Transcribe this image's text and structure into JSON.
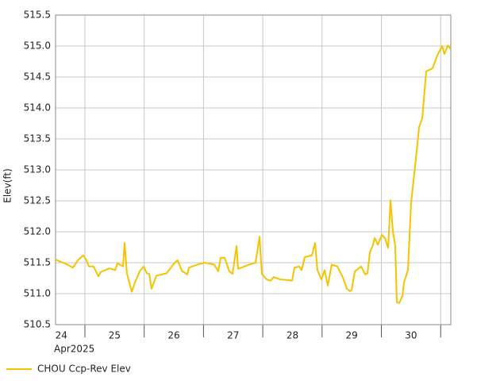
{
  "chart_data": {
    "type": "line",
    "y_label": "Elev(ft)",
    "x_sublabel": "Apr2025",
    "xlim": [
      24.505,
      31.171
    ],
    "ylim": [
      510.5,
      515.5
    ],
    "xticks": [
      {
        "value": 24.5,
        "label": "24"
      },
      {
        "value": 25.5,
        "label": "25"
      },
      {
        "value": 26.5,
        "label": "26"
      },
      {
        "value": 27.5,
        "label": "27"
      },
      {
        "value": 28.5,
        "label": "28"
      },
      {
        "value": 29.5,
        "label": "29"
      },
      {
        "value": 30.5,
        "label": "30"
      }
    ],
    "xgrid": [
      25,
      26,
      27,
      28,
      29,
      30,
      31
    ],
    "yticks": [
      510.5,
      {
        "value": 511,
        "label": "511.0"
      },
      511.5,
      {
        "value": 512,
        "label": "512.0"
      },
      512.5,
      {
        "value": 513,
        "label": "513.0"
      },
      513.5,
      {
        "value": 514,
        "label": "514.0"
      },
      514.5,
      {
        "value": 515,
        "label": "515.0"
      },
      515.5
    ],
    "grid": true,
    "legend": "bottom-left",
    "x": [
      24.505,
      24.705,
      24.799,
      24.88,
      24.973,
      25.027,
      25.067,
      25.147,
      25.228,
      25.268,
      25.415,
      25.509,
      25.549,
      25.643,
      25.669,
      25.71,
      25.79,
      25.843,
      25.924,
      25.991,
      26.044,
      26.084,
      26.124,
      26.205,
      26.379,
      26.513,
      26.566,
      26.633,
      26.727,
      26.754,
      26.901,
      27.021,
      27.182,
      27.249,
      27.289,
      27.356,
      27.436,
      27.49,
      27.557,
      27.584,
      27.771,
      27.878,
      27.945,
      27.985,
      28.066,
      28.133,
      28.186,
      28.293,
      28.427,
      28.494,
      28.534,
      28.614,
      28.655,
      28.708,
      28.829,
      28.882,
      28.922,
      28.989,
      29.043,
      29.096,
      29.163,
      29.257,
      29.351,
      29.418,
      29.471,
      29.498,
      29.552,
      29.659,
      29.726,
      29.766,
      29.806,
      29.859,
      29.886,
      29.94,
      30.007,
      30.06,
      30.114,
      30.154,
      30.194,
      30.234,
      30.261,
      30.301,
      30.355,
      30.381,
      30.448,
      30.502,
      30.582,
      30.636,
      30.689,
      30.756,
      30.863,
      30.944,
      31.024,
      31.064,
      31.118,
      31.171
    ],
    "series": [
      {
        "name": "CHOU Ccp-Rev Elev",
        "color": "#f5c400",
        "values": [
          511.55,
          511.47,
          511.42,
          511.54,
          511.62,
          511.54,
          511.44,
          511.44,
          511.28,
          511.35,
          511.41,
          511.38,
          511.49,
          511.44,
          511.82,
          511.32,
          511.03,
          511.18,
          511.36,
          511.44,
          511.33,
          511.32,
          511.08,
          511.29,
          511.33,
          511.5,
          511.54,
          511.37,
          511.31,
          511.42,
          511.47,
          511.5,
          511.47,
          511.36,
          511.58,
          511.58,
          511.36,
          511.32,
          511.77,
          511.4,
          511.47,
          511.5,
          511.92,
          511.32,
          511.23,
          511.21,
          511.27,
          511.23,
          511.22,
          511.21,
          511.42,
          511.44,
          511.38,
          511.59,
          511.62,
          511.82,
          511.38,
          511.23,
          511.38,
          511.13,
          511.47,
          511.44,
          511.26,
          511.08,
          511.04,
          511.06,
          511.36,
          511.44,
          511.31,
          511.33,
          511.67,
          511.79,
          511.9,
          511.79,
          511.95,
          511.9,
          511.74,
          512.51,
          512.01,
          511.77,
          510.86,
          510.85,
          510.96,
          511.18,
          511.38,
          512.47,
          513.18,
          513.69,
          513.83,
          514.59,
          514.64,
          514.85,
          515.0,
          514.87,
          515.01,
          514.95
        ]
      }
    ]
  }
}
